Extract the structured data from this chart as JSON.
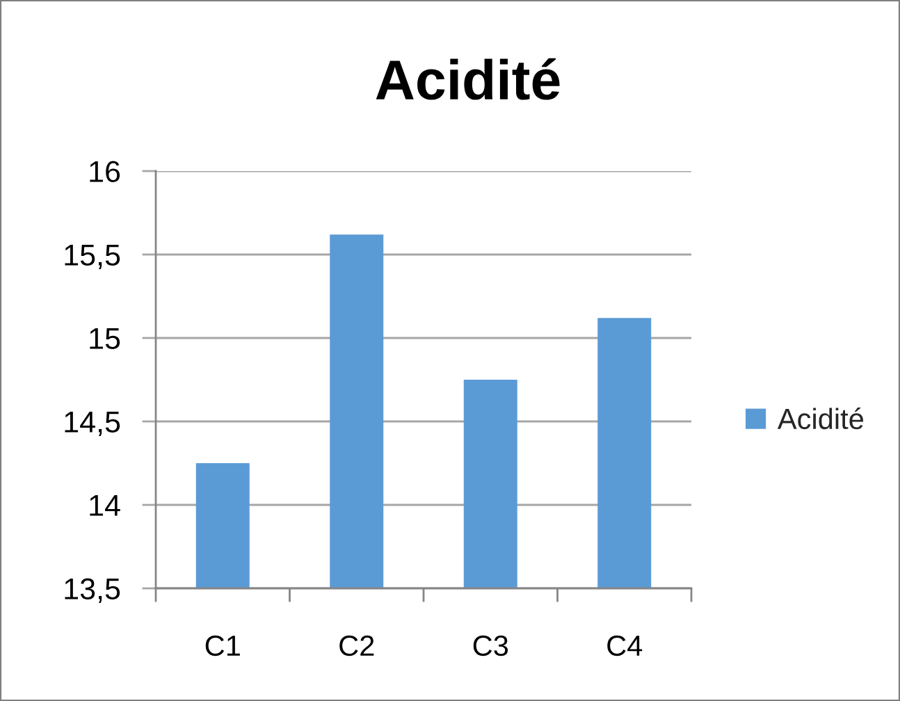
{
  "chart_data": {
    "type": "bar",
    "title": "Acidité",
    "categories": [
      "C1",
      "C2",
      "C3",
      "C4"
    ],
    "series": [
      {
        "name": "Acidité",
        "color": "#5b9bd5",
        "values": [
          14.25,
          15.62,
          14.75,
          15.12
        ]
      }
    ],
    "ylim": [
      13.5,
      16
    ],
    "yticks": [
      {
        "value": 13.5,
        "label": "13,5"
      },
      14,
      {
        "value": 14.5,
        "label": "14,5"
      },
      15,
      {
        "value": 15.5,
        "label": "15,5"
      },
      16
    ],
    "grid": "y",
    "legend": "right"
  }
}
